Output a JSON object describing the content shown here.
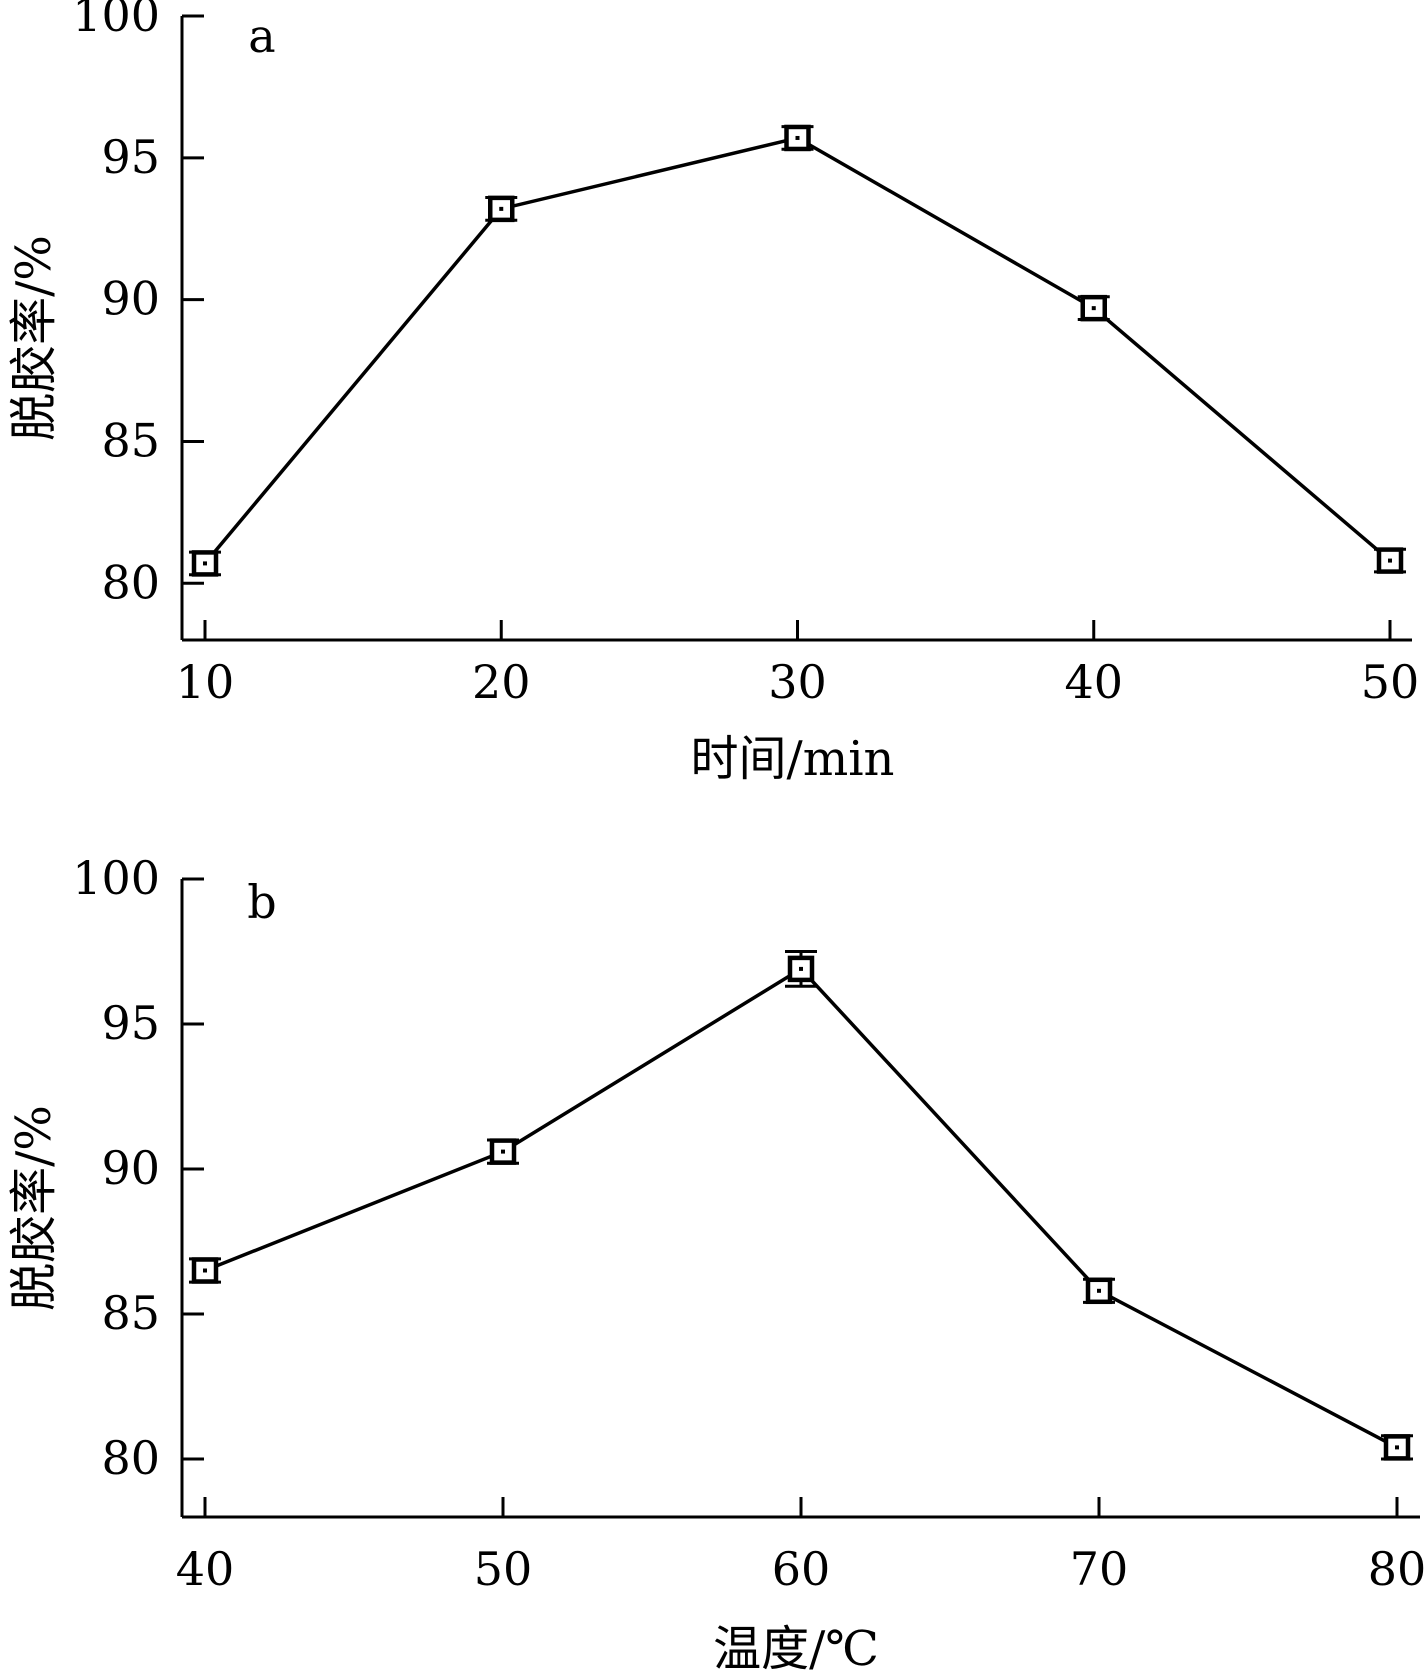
{
  "chart_data": [
    {
      "type": "line",
      "panel_label": "a",
      "xlabel": "时间/min",
      "ylabel": "脱胶率/%",
      "x": [
        10,
        20,
        30,
        40,
        50
      ],
      "x_ticks": [
        "10",
        "20",
        "30",
        "40",
        "50"
      ],
      "y_ticks": [
        "80",
        "85",
        "90",
        "95",
        "100"
      ],
      "ylim": [
        78,
        100
      ],
      "grid": false,
      "marker": "square",
      "series": [
        {
          "values": [
            80.7,
            93.2,
            95.7,
            89.7,
            80.8
          ],
          "error": [
            0.4,
            0.4,
            0.4,
            0.4,
            0.4
          ]
        }
      ]
    },
    {
      "type": "line",
      "panel_label": "b",
      "xlabel": "温度/℃",
      "ylabel": "脱胶率/%",
      "x": [
        40,
        50,
        60,
        70,
        80
      ],
      "x_ticks": [
        "40",
        "50",
        "60",
        "70",
        "80"
      ],
      "y_ticks": [
        "80",
        "85",
        "90",
        "95",
        "100"
      ],
      "ylim": [
        78,
        100
      ],
      "grid": false,
      "marker": "square",
      "series": [
        {
          "values": [
            86.5,
            90.6,
            96.9,
            85.8,
            80.4
          ],
          "error": [
            0.4,
            0.4,
            0.6,
            0.4,
            0.4
          ]
        }
      ]
    }
  ]
}
